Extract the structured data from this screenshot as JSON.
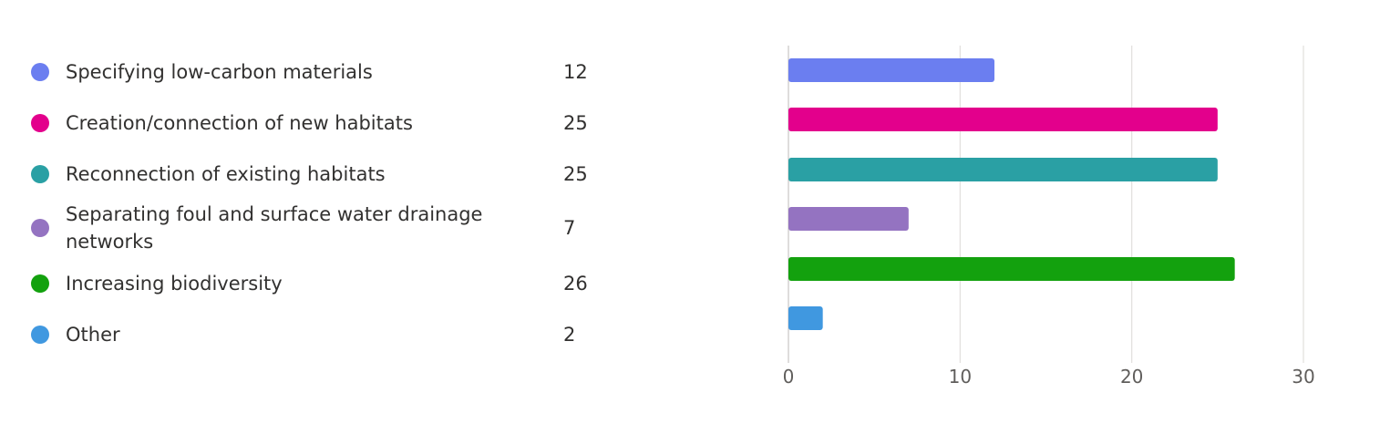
{
  "chart_data": {
    "type": "bar",
    "orientation": "horizontal",
    "categories": [
      "Specifying low-carbon materials",
      "Creation/connection of new habitats",
      "Reconnection of existing habitats",
      "Separating foul and surface water drainage networks",
      "Increasing biodiversity",
      "Other"
    ],
    "values": [
      12,
      25,
      25,
      7,
      26,
      2
    ],
    "colors": [
      "#6b7ef0",
      "#e3008c",
      "#2aa0a4",
      "#9473c1",
      "#13a10e",
      "#4098e0"
    ],
    "xlim": [
      0,
      30
    ],
    "xticks": [
      0,
      10,
      20,
      30
    ],
    "grid": true,
    "legend": "left"
  }
}
